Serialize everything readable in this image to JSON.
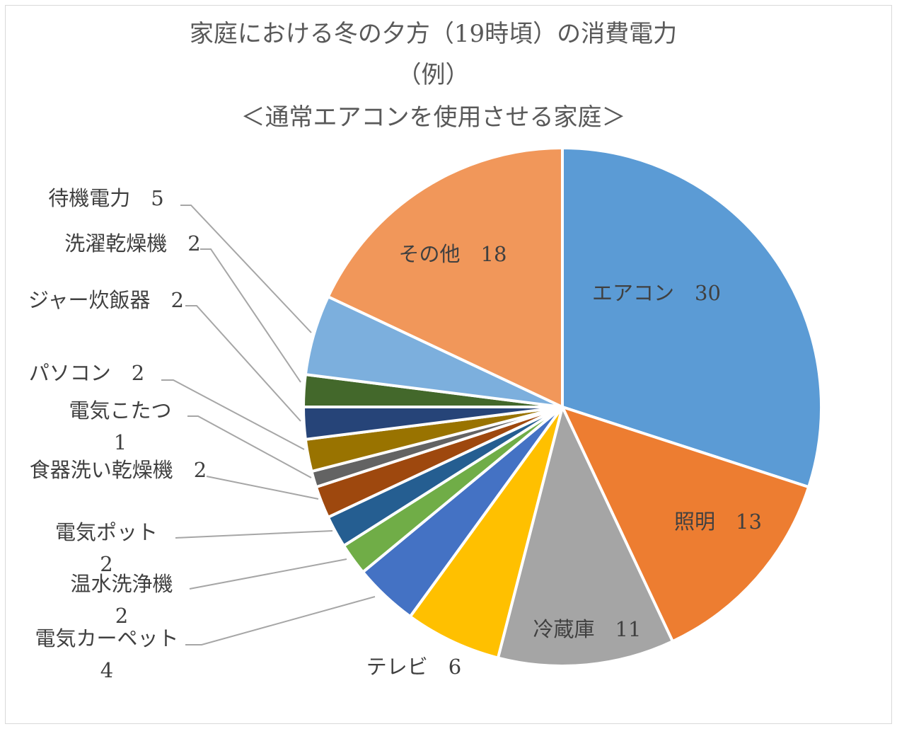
{
  "chart_data": {
    "type": "pie",
    "title": [
      "家庭における冬の夕方（19時頃）の消費電力",
      "（例）",
      "＜通常エアコンを使用させる家庭＞"
    ],
    "start_angle": "top",
    "direction": "clockwise",
    "slices": [
      {
        "label": "エアコン",
        "value": 30,
        "color": "#5B9BD5"
      },
      {
        "label": "照明",
        "value": 13,
        "color": "#ED7D31"
      },
      {
        "label": "冷蔵庫",
        "value": 11,
        "color": "#A5A5A5"
      },
      {
        "label": "テレビ",
        "value": 6,
        "color": "#FFC000"
      },
      {
        "label": "電気カーペット",
        "value": 4,
        "color": "#4472C4"
      },
      {
        "label": "温水洗浄機",
        "value": 2,
        "color": "#70AD47"
      },
      {
        "label": "電気ポット",
        "value": 2,
        "color": "#255E91"
      },
      {
        "label": "食器洗い乾燥機",
        "value": 2,
        "color": "#9E480E"
      },
      {
        "label": "電気こたつ",
        "value": 1,
        "color": "#636363"
      },
      {
        "label": "パソコン",
        "value": 2,
        "color": "#997300"
      },
      {
        "label": "ジャー炊飯器",
        "value": 2,
        "color": "#264478"
      },
      {
        "label": "洗濯乾燥機",
        "value": 2,
        "color": "#43682B"
      },
      {
        "label": "待機電力",
        "value": 5,
        "color": "#7CAFDD"
      },
      {
        "label": "その他",
        "value": 18,
        "color": "#F1975A"
      }
    ]
  }
}
